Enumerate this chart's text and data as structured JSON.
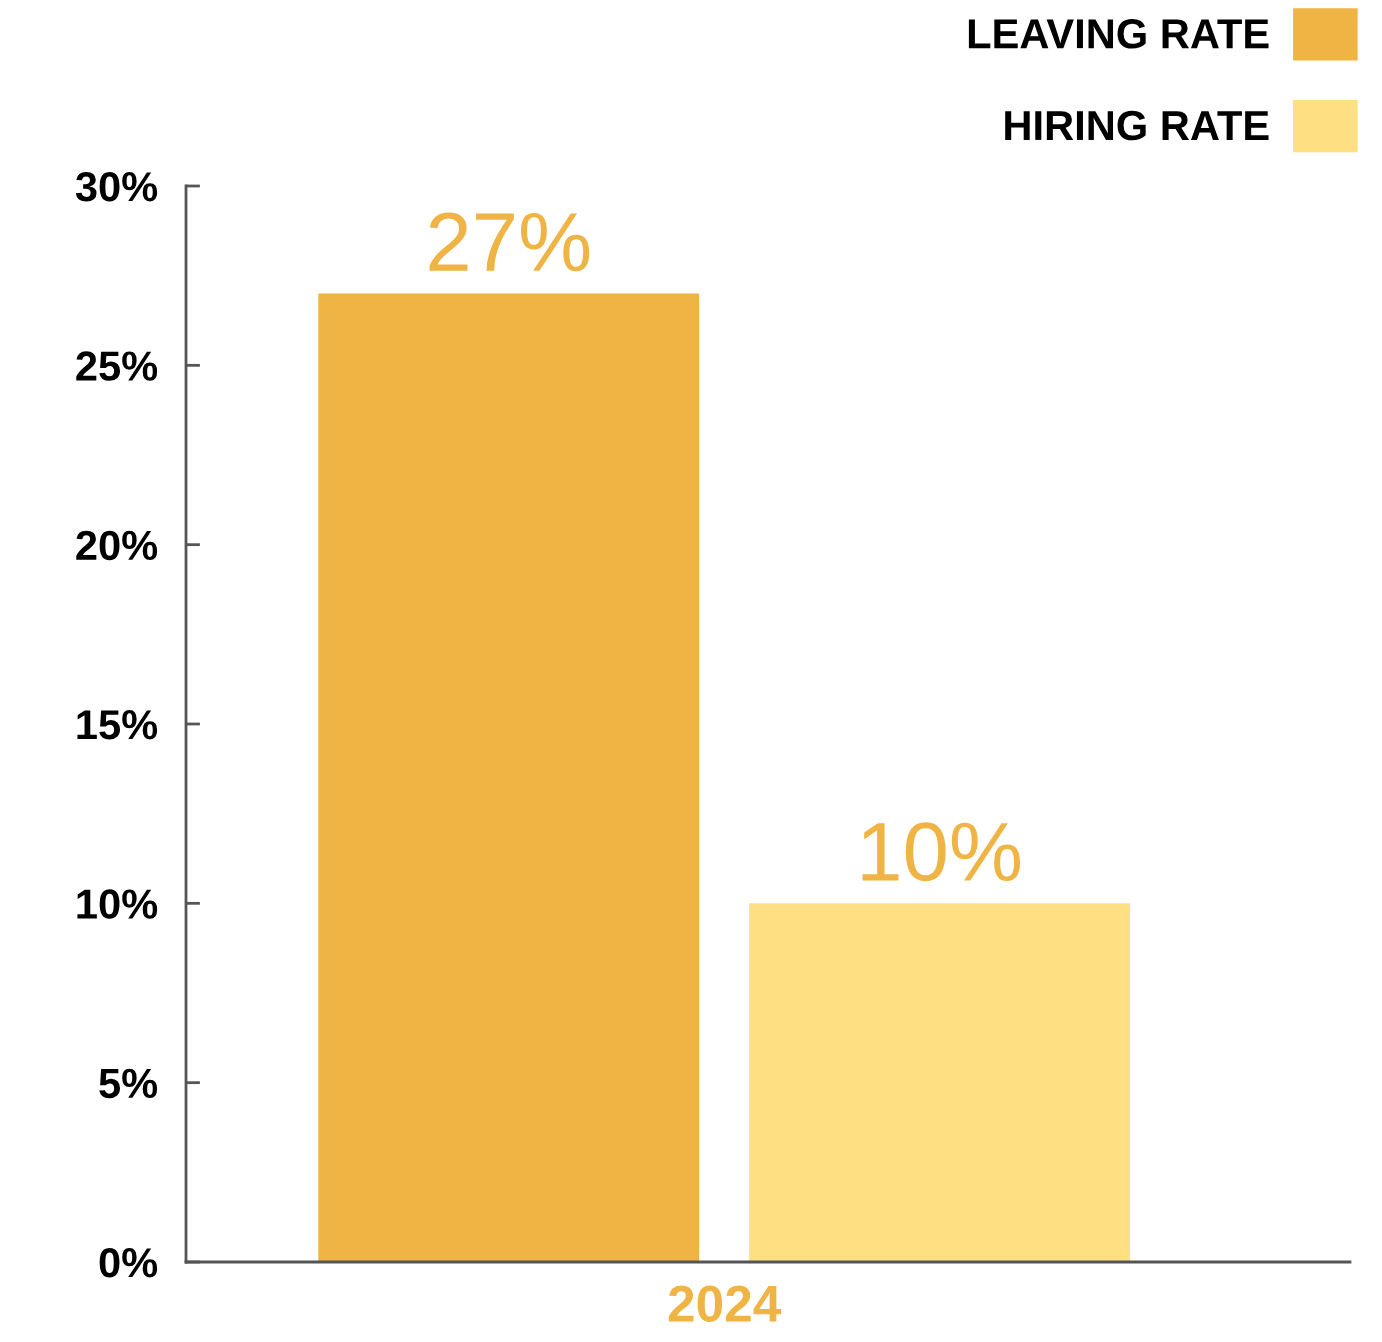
{
  "chart_data": {
    "type": "bar",
    "categories": [
      "2024"
    ],
    "series": [
      {
        "name": "LEAVING RATE",
        "color": "#efb443",
        "values": [
          27
        ],
        "value_labels": [
          "27%"
        ]
      },
      {
        "name": "HIRING RATE",
        "color": "#fee083",
        "values": [
          10
        ],
        "value_labels": [
          "10%"
        ]
      }
    ],
    "ylim": [
      0,
      30
    ],
    "yticks": [
      {
        "value": 0,
        "label": "0%"
      },
      {
        "value": 5,
        "label": "5%"
      },
      {
        "value": 10,
        "label": "10%"
      },
      {
        "value": 15,
        "label": "15%"
      },
      {
        "value": 20,
        "label": "20%"
      },
      {
        "value": 25,
        "label": "25%"
      },
      {
        "value": 30,
        "label": "30%"
      }
    ],
    "legend": "top right"
  }
}
